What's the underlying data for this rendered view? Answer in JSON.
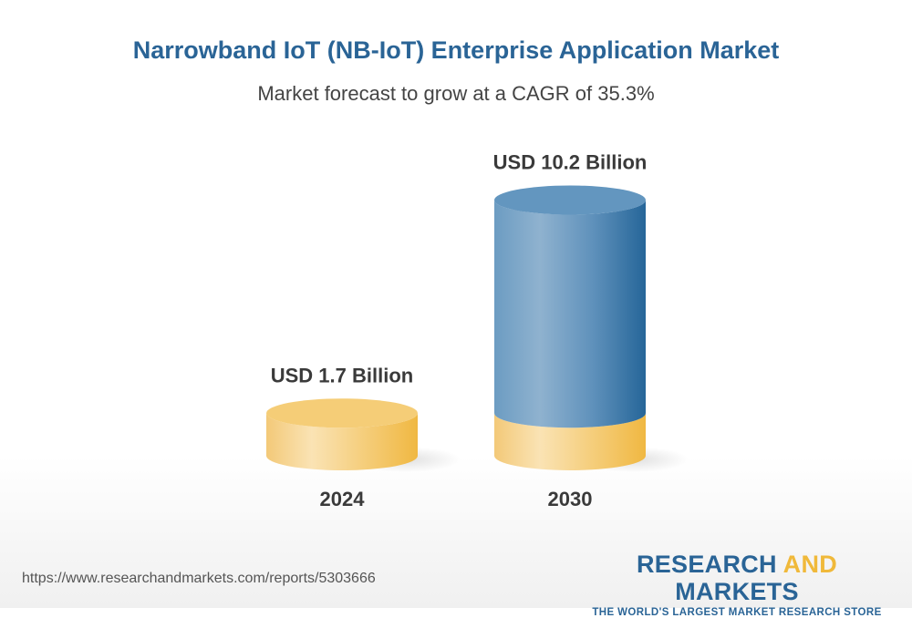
{
  "header": {
    "title": "Narrowband IoT (NB-IoT) Enterprise Application Market",
    "subtitle": "Market forecast to grow at a CAGR of 35.3%"
  },
  "chart_data": {
    "type": "bar",
    "style": "3d-cylinder",
    "categories": [
      "2024",
      "2030"
    ],
    "values": [
      1.7,
      10.2
    ],
    "data_labels": [
      "USD 1.7 Billion",
      "USD 10.2 Billion"
    ],
    "unit": "USD Billion",
    "colors": {
      "base": "#f3c35c",
      "growth": "#2a6496"
    },
    "grid": false
  },
  "footer": {
    "url": "https://www.researchandmarkets.com/reports/5303666",
    "logo_word1": "RESEARCH ",
    "logo_word2": "AND",
    "logo_word3": " MARKETS",
    "logo_tagline": "THE WORLD'S LARGEST MARKET RESEARCH STORE"
  }
}
